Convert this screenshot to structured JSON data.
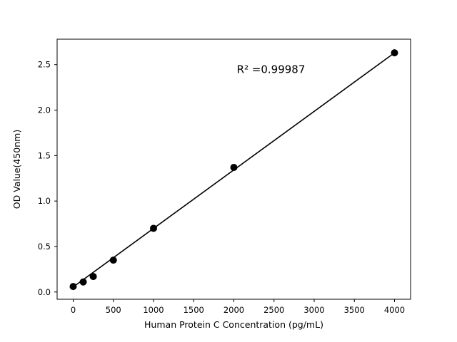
{
  "chart_data": {
    "type": "scatter",
    "title": "",
    "xlabel": "Human Protein C Concentration (pg/mL)",
    "ylabel": "OD Value(450nm)",
    "annotation": "R² =0.99987",
    "x": [
      0,
      125,
      250,
      500,
      1000,
      2000,
      4000
    ],
    "y": [
      0.06,
      0.11,
      0.17,
      0.35,
      0.7,
      1.37,
      2.63
    ],
    "fit_line": {
      "x": [
        0,
        4000
      ],
      "y": [
        0.055,
        2.63
      ]
    },
    "xticks": [
      0,
      500,
      1000,
      1500,
      2000,
      2500,
      3000,
      3500,
      4000
    ],
    "xtick_labels": [
      "0",
      "500",
      "1000",
      "1500",
      "2000",
      "2500",
      "3000",
      "3500",
      "4000"
    ],
    "yticks": [
      0.0,
      0.5,
      1.0,
      1.5,
      2.0,
      2.5
    ],
    "ytick_labels": [
      "0.0",
      "0.5",
      "1.0",
      "1.5",
      "2.0",
      "2.5"
    ],
    "xlim": [
      -200,
      4200
    ],
    "ylim": [
      -0.08,
      2.78
    ],
    "grid": false,
    "legend": "none",
    "marker_color": "#000000",
    "line_color": "#000000",
    "axis_color": "#000000",
    "background": "#ffffff"
  }
}
